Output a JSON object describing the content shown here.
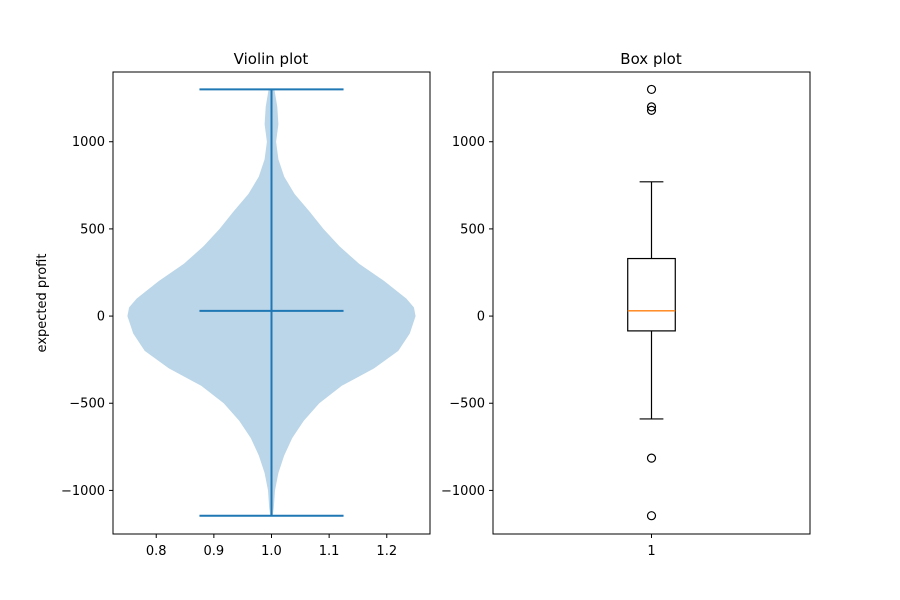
{
  "chart_data": [
    {
      "type": "violin",
      "title": "Violin plot",
      "xlabel": "",
      "ylabel": "expected profit",
      "xlim": [
        0.725,
        1.275
      ],
      "ylim": [
        -1250,
        1400
      ],
      "xticks": [
        0.8,
        0.9,
        1.0,
        1.1,
        1.2
      ],
      "xtick_labels": [
        "0.8",
        "0.9",
        "1.0",
        "1.1",
        "1.2"
      ],
      "yticks": [
        -1000,
        -500,
        0,
        500,
        1000
      ],
      "ytick_labels": [
        "−1000",
        "−500",
        "0",
        "500",
        "1000"
      ],
      "grid": false,
      "color": "#1f77b4",
      "fill_color": "#bbd6e8",
      "position": 1.0,
      "bar_halfwidth": 0.125,
      "max": 1300,
      "min": -1145,
      "median": 30,
      "density_halfwidth": [
        [
          -1145,
          0.002
        ],
        [
          -1100,
          0.004
        ],
        [
          -1000,
          0.006
        ],
        [
          -900,
          0.012
        ],
        [
          -800,
          0.022
        ],
        [
          -700,
          0.036
        ],
        [
          -600,
          0.056
        ],
        [
          -500,
          0.083
        ],
        [
          -400,
          0.122
        ],
        [
          -300,
          0.178
        ],
        [
          -200,
          0.22
        ],
        [
          -100,
          0.24
        ],
        [
          -40,
          0.246
        ],
        [
          0,
          0.25
        ],
        [
          50,
          0.247
        ],
        [
          100,
          0.234
        ],
        [
          200,
          0.196
        ],
        [
          300,
          0.152
        ],
        [
          400,
          0.118
        ],
        [
          500,
          0.09
        ],
        [
          600,
          0.066
        ],
        [
          700,
          0.04
        ],
        [
          800,
          0.022
        ],
        [
          900,
          0.012
        ],
        [
          1000,
          0.008
        ],
        [
          1100,
          0.012
        ],
        [
          1200,
          0.01
        ],
        [
          1300,
          0.005
        ]
      ]
    },
    {
      "type": "box",
      "title": "Box plot",
      "xlabel": "",
      "ylabel": "",
      "xlim": [
        0.5,
        1.5
      ],
      "ylim": [
        -1250,
        1400
      ],
      "xticks": [
        1
      ],
      "xtick_labels": [
        "1"
      ],
      "yticks": [
        -1000,
        -500,
        0,
        500,
        1000
      ],
      "ytick_labels": [
        "−1000",
        "−500",
        "0",
        "500",
        "1000"
      ],
      "grid": false,
      "box_color": "#000000",
      "median_color": "#ff7f0e",
      "position": 1,
      "box_halfwidth": 0.075,
      "cap_halfwidth": 0.0375,
      "whisker_low": -590,
      "q1": -85,
      "median": 30,
      "q3": 330,
      "whisker_high": 770,
      "outliers": [
        1300,
        1200,
        1180,
        -815,
        -1145
      ]
    }
  ]
}
